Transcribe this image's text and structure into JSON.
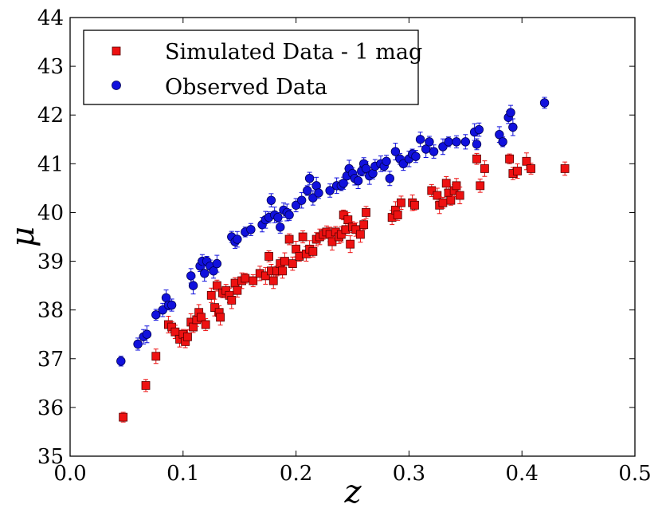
{
  "chart_data": {
    "type": "scatter",
    "title": "",
    "xlabel": "z",
    "ylabel": "μ",
    "xlim": [
      0.0,
      0.5
    ],
    "ylim": [
      35,
      44
    ],
    "xticks": [
      "0.0",
      "0.1",
      "0.2",
      "0.3",
      "0.4",
      "0.5"
    ],
    "yticks": [
      "35",
      "36",
      "37",
      "38",
      "39",
      "40",
      "41",
      "42",
      "43",
      "44"
    ],
    "grid": false,
    "legend_position": "top-left",
    "series": [
      {
        "name": "Simulated Data - 1 mag",
        "marker": "square",
        "color": "#ee1111",
        "edge_color": "#550000",
        "points": [
          [
            0.047,
            35.8
          ],
          [
            0.067,
            36.45
          ],
          [
            0.076,
            37.05
          ],
          [
            0.087,
            37.7
          ],
          [
            0.09,
            37.65
          ],
          [
            0.093,
            37.55
          ],
          [
            0.097,
            37.4
          ],
          [
            0.1,
            37.5
          ],
          [
            0.102,
            37.35
          ],
          [
            0.104,
            37.45
          ],
          [
            0.107,
            37.75
          ],
          [
            0.109,
            37.65
          ],
          [
            0.112,
            37.8
          ],
          [
            0.114,
            37.95
          ],
          [
            0.116,
            37.85
          ],
          [
            0.12,
            37.7
          ],
          [
            0.125,
            38.3
          ],
          [
            0.128,
            38.05
          ],
          [
            0.13,
            38.5
          ],
          [
            0.132,
            37.95
          ],
          [
            0.133,
            37.85
          ],
          [
            0.135,
            38.35
          ],
          [
            0.138,
            38.4
          ],
          [
            0.141,
            38.3
          ],
          [
            0.143,
            38.2
          ],
          [
            0.146,
            38.55
          ],
          [
            0.148,
            38.4
          ],
          [
            0.152,
            38.6
          ],
          [
            0.155,
            38.65
          ],
          [
            0.162,
            38.6
          ],
          [
            0.168,
            38.75
          ],
          [
            0.173,
            38.7
          ],
          [
            0.176,
            39.1
          ],
          [
            0.178,
            38.8
          ],
          [
            0.18,
            38.6
          ],
          [
            0.183,
            38.8
          ],
          [
            0.186,
            38.95
          ],
          [
            0.188,
            38.8
          ],
          [
            0.19,
            39.0
          ],
          [
            0.194,
            39.45
          ],
          [
            0.197,
            38.95
          ],
          [
            0.2,
            39.25
          ],
          [
            0.203,
            39.1
          ],
          [
            0.206,
            39.5
          ],
          [
            0.209,
            39.15
          ],
          [
            0.212,
            39.25
          ],
          [
            0.215,
            39.2
          ],
          [
            0.218,
            39.45
          ],
          [
            0.221,
            39.5
          ],
          [
            0.224,
            39.55
          ],
          [
            0.227,
            39.6
          ],
          [
            0.23,
            39.55
          ],
          [
            0.232,
            39.4
          ],
          [
            0.235,
            39.6
          ],
          [
            0.238,
            39.5
          ],
          [
            0.24,
            39.55
          ],
          [
            0.242,
            39.95
          ],
          [
            0.244,
            39.65
          ],
          [
            0.246,
            39.85
          ],
          [
            0.248,
            39.35
          ],
          [
            0.25,
            39.7
          ],
          [
            0.253,
            39.65
          ],
          [
            0.257,
            39.55
          ],
          [
            0.26,
            39.75
          ],
          [
            0.262,
            40.0
          ],
          [
            0.285,
            39.9
          ],
          [
            0.288,
            40.05
          ],
          [
            0.29,
            39.95
          ],
          [
            0.293,
            40.2
          ],
          [
            0.303,
            40.2
          ],
          [
            0.305,
            40.15
          ],
          [
            0.32,
            40.45
          ],
          [
            0.325,
            40.35
          ],
          [
            0.327,
            40.15
          ],
          [
            0.33,
            40.2
          ],
          [
            0.333,
            40.6
          ],
          [
            0.335,
            40.4
          ],
          [
            0.337,
            40.25
          ],
          [
            0.34,
            40.45
          ],
          [
            0.342,
            40.55
          ],
          [
            0.345,
            40.35
          ],
          [
            0.36,
            41.1
          ],
          [
            0.363,
            40.55
          ],
          [
            0.367,
            40.9
          ],
          [
            0.389,
            41.1
          ],
          [
            0.392,
            40.8
          ],
          [
            0.396,
            40.85
          ],
          [
            0.404,
            41.05
          ],
          [
            0.408,
            40.9
          ],
          [
            0.438,
            40.9
          ]
        ]
      },
      {
        "name": "Observed Data",
        "marker": "circle",
        "color": "#1111dd",
        "edge_color": "#000055",
        "points": [
          [
            0.045,
            36.95
          ],
          [
            0.06,
            37.3
          ],
          [
            0.065,
            37.45
          ],
          [
            0.068,
            37.5
          ],
          [
            0.076,
            37.9
          ],
          [
            0.082,
            38.0
          ],
          [
            0.085,
            38.25
          ],
          [
            0.087,
            38.1
          ],
          [
            0.09,
            38.1
          ],
          [
            0.107,
            38.7
          ],
          [
            0.109,
            38.5
          ],
          [
            0.115,
            38.9
          ],
          [
            0.117,
            39.0
          ],
          [
            0.119,
            38.75
          ],
          [
            0.121,
            39.0
          ],
          [
            0.124,
            38.9
          ],
          [
            0.127,
            38.8
          ],
          [
            0.13,
            38.95
          ],
          [
            0.143,
            39.5
          ],
          [
            0.146,
            39.4
          ],
          [
            0.148,
            39.45
          ],
          [
            0.155,
            39.6
          ],
          [
            0.16,
            39.65
          ],
          [
            0.17,
            39.75
          ],
          [
            0.173,
            39.85
          ],
          [
            0.176,
            39.9
          ],
          [
            0.178,
            40.25
          ],
          [
            0.181,
            39.95
          ],
          [
            0.184,
            39.9
          ],
          [
            0.186,
            39.7
          ],
          [
            0.189,
            40.05
          ],
          [
            0.192,
            40.0
          ],
          [
            0.194,
            39.95
          ],
          [
            0.2,
            40.15
          ],
          [
            0.205,
            40.25
          ],
          [
            0.21,
            40.45
          ],
          [
            0.212,
            40.7
          ],
          [
            0.215,
            40.3
          ],
          [
            0.218,
            40.55
          ],
          [
            0.22,
            40.4
          ],
          [
            0.23,
            40.45
          ],
          [
            0.236,
            40.55
          ],
          [
            0.24,
            40.55
          ],
          [
            0.242,
            40.6
          ],
          [
            0.245,
            40.75
          ],
          [
            0.247,
            40.9
          ],
          [
            0.25,
            40.8
          ],
          [
            0.252,
            40.7
          ],
          [
            0.255,
            40.65
          ],
          [
            0.258,
            40.85
          ],
          [
            0.26,
            41.0
          ],
          [
            0.262,
            40.9
          ],
          [
            0.265,
            40.75
          ],
          [
            0.268,
            40.8
          ],
          [
            0.27,
            40.95
          ],
          [
            0.275,
            41.0
          ],
          [
            0.278,
            40.95
          ],
          [
            0.28,
            41.05
          ],
          [
            0.283,
            40.7
          ],
          [
            0.288,
            41.25
          ],
          [
            0.292,
            41.1
          ],
          [
            0.295,
            41.0
          ],
          [
            0.3,
            41.1
          ],
          [
            0.303,
            41.2
          ],
          [
            0.306,
            41.15
          ],
          [
            0.31,
            41.5
          ],
          [
            0.315,
            41.3
          ],
          [
            0.318,
            41.45
          ],
          [
            0.322,
            41.25
          ],
          [
            0.33,
            41.35
          ],
          [
            0.335,
            41.45
          ],
          [
            0.342,
            41.45
          ],
          [
            0.35,
            41.45
          ],
          [
            0.358,
            41.65
          ],
          [
            0.36,
            41.4
          ],
          [
            0.362,
            41.7
          ],
          [
            0.38,
            41.6
          ],
          [
            0.383,
            41.45
          ],
          [
            0.388,
            41.95
          ],
          [
            0.39,
            42.05
          ],
          [
            0.392,
            41.75
          ],
          [
            0.42,
            42.25
          ]
        ]
      }
    ]
  }
}
